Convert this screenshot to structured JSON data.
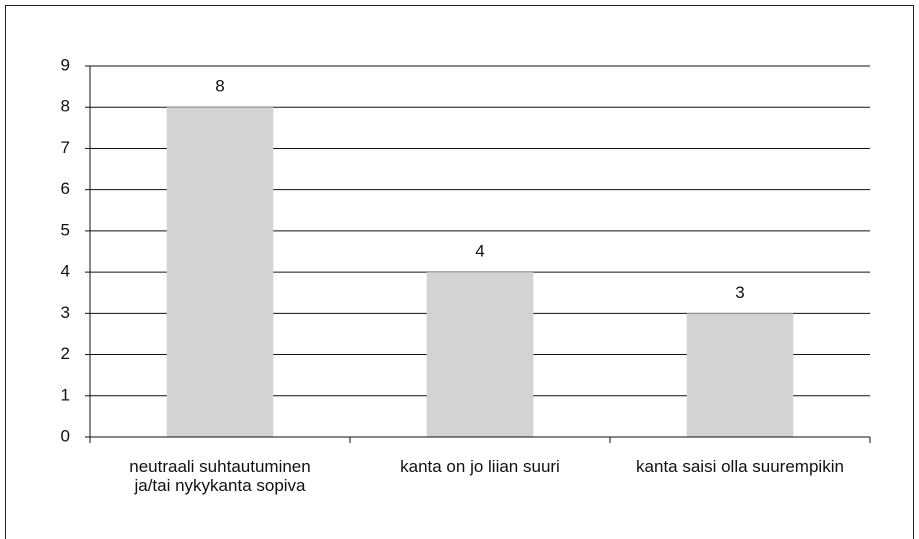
{
  "chart_data": {
    "type": "bar",
    "categories": [
      "neutraali suhtautuminen ja/tai nykykanta sopiva",
      "kanta on jo liian suuri",
      "kanta saisi olla suurempikin"
    ],
    "values": [
      8,
      4,
      3
    ],
    "color": "#d3d3d3",
    "ylim": [
      0,
      9
    ],
    "yticks": [
      0,
      1,
      2,
      3,
      4,
      5,
      6,
      7,
      8,
      9
    ],
    "grid": true
  }
}
